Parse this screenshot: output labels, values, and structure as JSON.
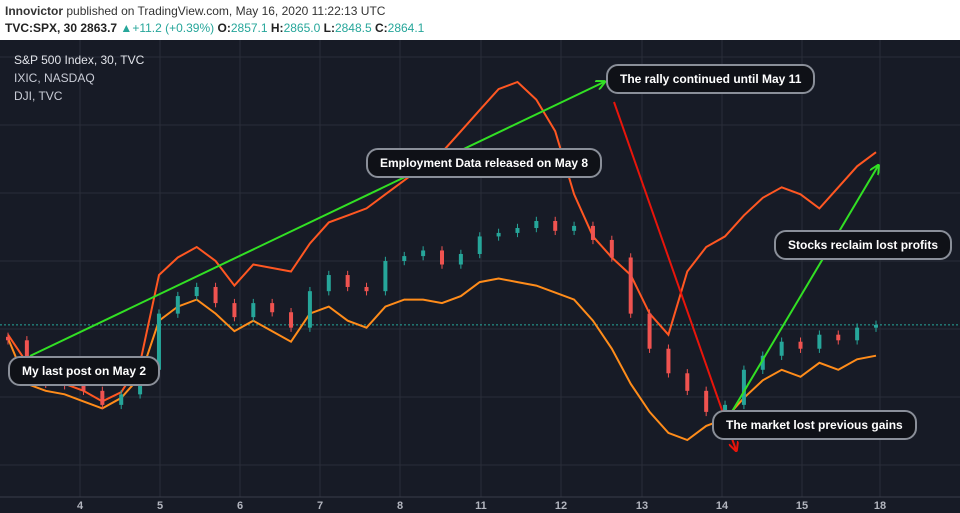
{
  "header": {
    "author": "Innovictor",
    "published_text": "published on TradingView.com, May 16, 2020 11:22:13 UTC",
    "symbol": "TVC:SPX, 30",
    "last_price": "2863.7",
    "change_arrow": "▲",
    "change": "+11.2 (+0.39%)",
    "open_label": "O:",
    "open": "2857.1",
    "high_label": "H:",
    "high": "2865.0",
    "low_label": "L:",
    "low": "2848.5",
    "close_label": "C:",
    "close": "2864.1"
  },
  "legend": [
    "S&P 500 Index, 30, TVC",
    "IXIC, NASDAQ",
    "DJI, TVC"
  ],
  "annotations": {
    "rally": "The rally continued until May 11",
    "employment": "Employment Data released on May 8",
    "reclaim": "Stocks reclaim lost profits",
    "last_post": "My last post on May 2",
    "lost": "The market lost previous gains"
  },
  "colors": {
    "background": "#171b26",
    "grid": "#2a2e39",
    "candle_up": "#26a69a",
    "candle_down": "#ef5350",
    "ixic": "#ff5722",
    "dji": "#ff8c1a",
    "trend_up": "#32e024",
    "trend_down": "#e8150b"
  },
  "chart_data": {
    "type": "line",
    "x_axis": {
      "ticks": [
        "4",
        "5",
        "6",
        "7",
        "8",
        "11",
        "12",
        "13",
        "14",
        "15",
        "18"
      ],
      "label": ""
    },
    "y_scale": "normalized comparison (no price axis shown)",
    "series": [
      {
        "name": "S&P 500 Index, 30, TVC",
        "style": "candles",
        "close": [
          2842,
          2790,
          2780,
          2778,
          2770,
          2750,
          2765,
          2800,
          2880,
          2905,
          2918,
          2895,
          2875,
          2895,
          2882,
          2860,
          2912,
          2935,
          2918,
          2912,
          2955,
          2962,
          2970,
          2950,
          2965,
          2990,
          2995,
          3002,
          3012,
          2998,
          3005,
          2985,
          2960,
          2880,
          2830,
          2795,
          2770,
          2740,
          2750,
          2800,
          2820,
          2840,
          2830,
          2850,
          2842,
          2860,
          2864
        ],
        "color_up": "#26a69a",
        "color_down": "#ef5350"
      },
      {
        "name": "IXIC, NASDAQ",
        "style": "line",
        "values": [
          2850,
          2810,
          2790,
          2780,
          2770,
          2755,
          2768,
          2810,
          2935,
          2960,
          2975,
          2955,
          2920,
          2950,
          2945,
          2940,
          2980,
          3010,
          3020,
          3030,
          3050,
          3070,
          3090,
          3110,
          3140,
          3170,
          3200,
          3210,
          3185,
          3140,
          3050,
          2990,
          2960,
          2935,
          2880,
          2850,
          2940,
          2975,
          2990,
          3020,
          3045,
          3060,
          3050,
          3030,
          3060,
          3090,
          3110
        ],
        "color": "#ff5722"
      },
      {
        "name": "DJI, TVC",
        "style": "line",
        "values": [
          2845,
          2780,
          2770,
          2765,
          2755,
          2745,
          2760,
          2790,
          2870,
          2890,
          2900,
          2880,
          2855,
          2870,
          2855,
          2840,
          2880,
          2890,
          2870,
          2860,
          2890,
          2900,
          2900,
          2895,
          2905,
          2925,
          2930,
          2925,
          2920,
          2910,
          2900,
          2870,
          2830,
          2780,
          2740,
          2710,
          2700,
          2720,
          2730,
          2760,
          2785,
          2800,
          2790,
          2810,
          2800,
          2815,
          2820
        ],
        "color": "#ff8c1a"
      }
    ],
    "trendlines": [
      {
        "from_x": "4",
        "to_x": "12",
        "direction": "up",
        "color": "#32e024"
      },
      {
        "from_x": "12",
        "to_x": "14",
        "direction": "down",
        "color": "#e8150b"
      },
      {
        "from_x": "14",
        "to_x": "18",
        "direction": "up",
        "color": "#32e024"
      }
    ],
    "grid": true,
    "legend_position": "top-left"
  }
}
